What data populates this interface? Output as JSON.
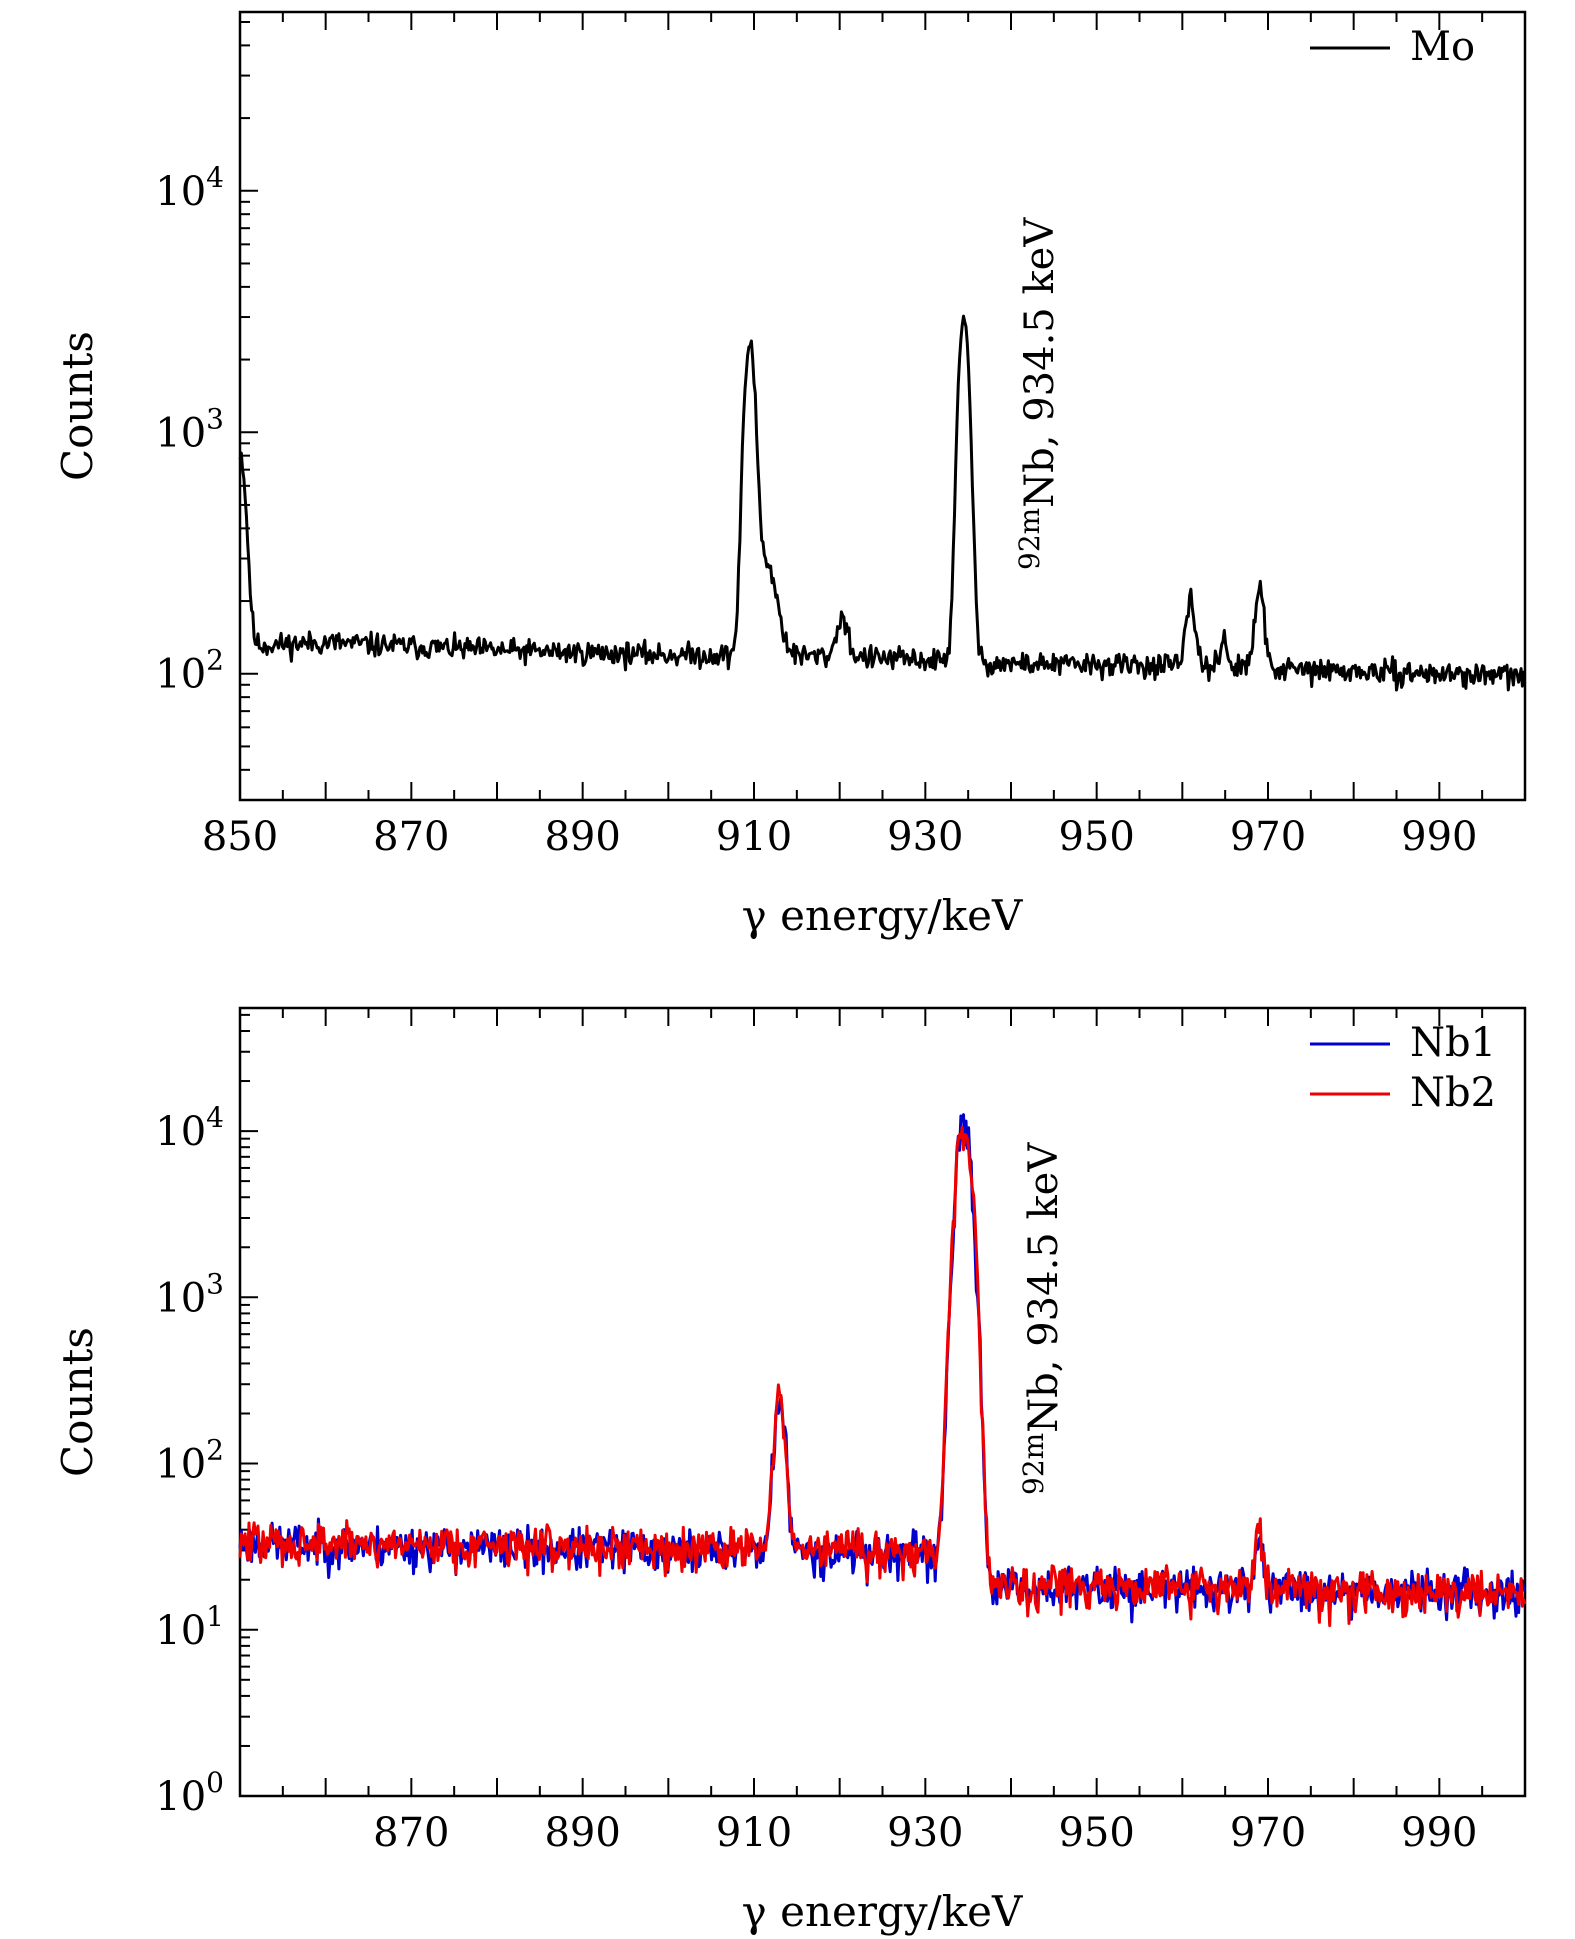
{
  "chart_data": [
    {
      "type": "line",
      "yscale": "log",
      "xlim": [
        850,
        1000
      ],
      "ylim": [
        30,
        55000
      ],
      "xticks": [
        850,
        870,
        890,
        910,
        930,
        950,
        970,
        990
      ],
      "xtick_labels": [
        "850",
        "870",
        "890",
        "910",
        "930",
        "950",
        "970",
        "990"
      ],
      "yticks": [
        100,
        1000,
        10000
      ],
      "ytick_labels": [
        {
          "base": "10",
          "exp": "2"
        },
        {
          "base": "10",
          "exp": "3"
        },
        {
          "base": "10",
          "exp": "4"
        }
      ],
      "xlabel": "γ energy/keV",
      "ylabel": "Counts",
      "legend_position": "top-right",
      "annotation": {
        "prefix": "92m",
        "text": "Nb, 934.5 keV",
        "x": 940.5
      },
      "series": [
        {
          "name": "Mo",
          "color": "#000000",
          "baseline": [
            [
              850,
              130
            ],
            [
              860,
              135
            ],
            [
              880,
              125
            ],
            [
              900,
              120
            ],
            [
              920,
              118
            ],
            [
              940,
              110
            ],
            [
              960,
              108
            ],
            [
              980,
              102
            ],
            [
              1000,
              98
            ]
          ],
          "peaks": [
            {
              "center": 850.0,
              "amp": 700,
              "sigma": 0.6
            },
            {
              "center": 909.5,
              "amp": 2180,
              "sigma": 0.55
            },
            {
              "center": 911.2,
              "amp": 180,
              "sigma": 1.2
            },
            {
              "center": 920.3,
              "amp": 55,
              "sigma": 0.6
            },
            {
              "center": 934.5,
              "amp": 2750,
              "sigma": 0.55
            },
            {
              "center": 961.0,
              "amp": 90,
              "sigma": 0.5
            },
            {
              "center": 964.8,
              "amp": 35,
              "sigma": 0.4
            },
            {
              "center": 969.0,
              "amp": 115,
              "sigma": 0.5
            }
          ],
          "noise": 0.07,
          "seed": 11
        }
      ]
    },
    {
      "type": "line",
      "yscale": "log",
      "xlim": [
        850,
        1000
      ],
      "ylim": [
        1,
        55000
      ],
      "xticks": [
        870,
        890,
        910,
        930,
        950,
        970,
        990
      ],
      "xtick_labels": [
        "870",
        "890",
        "910",
        "930",
        "950",
        "970",
        "990"
      ],
      "yticks": [
        1,
        10,
        100,
        1000,
        10000
      ],
      "ytick_labels": [
        {
          "base": "10",
          "exp": "0"
        },
        {
          "base": "10",
          "exp": "1"
        },
        {
          "base": "10",
          "exp": "2"
        },
        {
          "base": "10",
          "exp": "3"
        },
        {
          "base": "10",
          "exp": "4"
        }
      ],
      "xlabel": "γ energy/keV",
      "ylabel": "Counts",
      "legend_position": "top-right",
      "annotation": {
        "prefix": "92m",
        "text": "Nb, 934.5 keV",
        "x": 941.0
      },
      "series": [
        {
          "name": "Nb1",
          "color": "#0000cc",
          "baseline": [
            [
              850,
              34
            ],
            [
              870,
              32
            ],
            [
              890,
              31
            ],
            [
              910,
              30
            ],
            [
              930,
              29
            ],
            [
              938,
              18
            ],
            [
              960,
              18
            ],
            [
              1000,
              17
            ]
          ],
          "peaks": [
            {
              "center": 913.0,
              "amp": 215,
              "sigma": 0.55
            },
            {
              "center": 934.5,
              "amp": 10500,
              "sigma": 0.75
            },
            {
              "center": 969.0,
              "amp": 18,
              "sigma": 0.4
            }
          ],
          "noise": 0.18,
          "seed": 23
        },
        {
          "name": "Nb2",
          "color": "#ee0000",
          "baseline": [
            [
              850,
              34
            ],
            [
              870,
              33
            ],
            [
              890,
              32
            ],
            [
              910,
              31
            ],
            [
              930,
              30
            ],
            [
              938,
              19
            ],
            [
              960,
              18
            ],
            [
              1000,
              17
            ]
          ],
          "peaks": [
            {
              "center": 913.0,
              "amp": 210,
              "sigma": 0.55
            },
            {
              "center": 934.5,
              "amp": 11200,
              "sigma": 0.75
            },
            {
              "center": 969.0,
              "amp": 25,
              "sigma": 0.4
            }
          ],
          "noise": 0.18,
          "seed": 47
        }
      ]
    }
  ]
}
